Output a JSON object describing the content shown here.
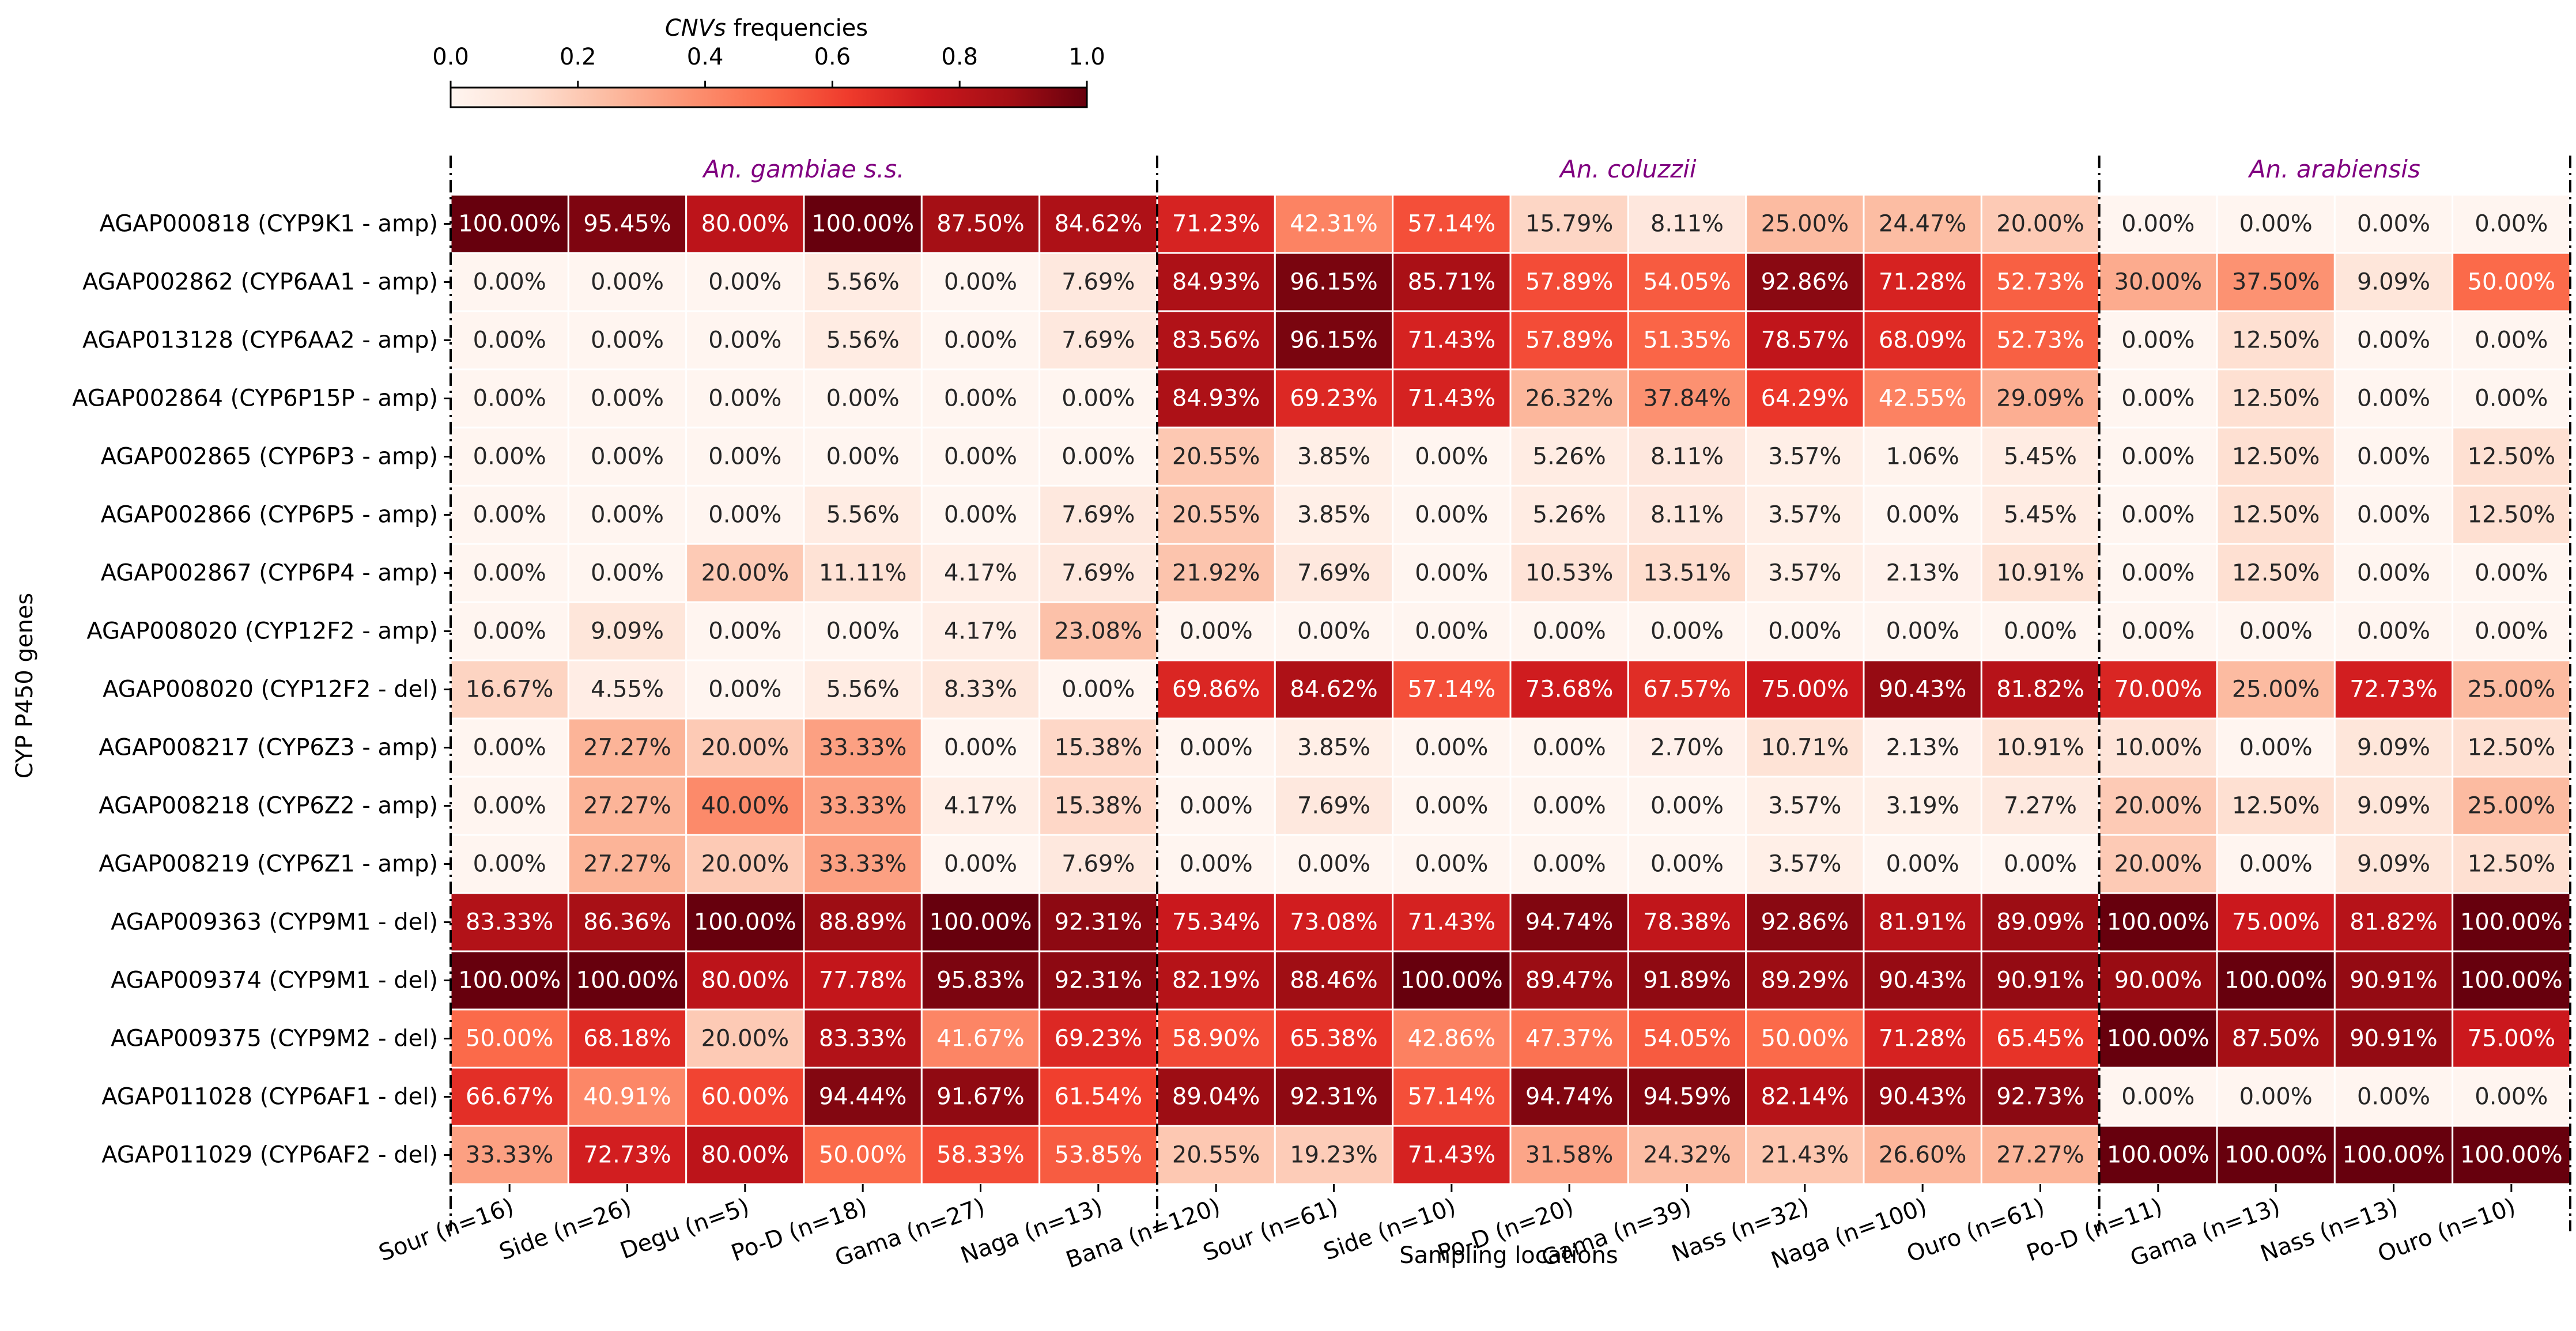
{
  "chart_data": {
    "type": "heatmap",
    "title": "",
    "xlabel": "Sampling locations",
    "ylabel": "CYP P450 genes",
    "colorbar": {
      "label_italic": "CNVs",
      "label_rest": " frequencies",
      "range": [
        0.0,
        1.0
      ],
      "ticks": [
        "0.0",
        "0.2",
        "0.4",
        "0.6",
        "0.8",
        "1.0"
      ],
      "colormap": "Reds",
      "placement": "top-left"
    },
    "groups": [
      {
        "name": "An. gambiae s.s.",
        "columns": 6,
        "color": "#800080"
      },
      {
        "name": "An. coluzzii",
        "columns": 8,
        "color": "#800080"
      },
      {
        "name": "An. arabiensis",
        "columns": 4,
        "color": "#800080"
      }
    ],
    "columns": [
      "Sour (n=16)",
      "Side (n=26)",
      "Degu (n=5)",
      "Po-D (n=18)",
      "Gama (n=27)",
      "Naga (n=13)",
      "Bana (n=120)",
      "Sour (n=61)",
      "Side (n=10)",
      "Po-D (n=20)",
      "Gama (n=39)",
      "Nass (n=32)",
      "Naga (n=100)",
      "Ouro (n=61)",
      "Po-D (n=11)",
      "Gama (n=13)",
      "Nass (n=13)",
      "Ouro (n=10)"
    ],
    "rows": [
      "AGAP000818 (CYP9K1 - amp)",
      "AGAP002862 (CYP6AA1 - amp)",
      "AGAP013128 (CYP6AA2 - amp)",
      "AGAP002864 (CYP6P15P - amp)",
      "AGAP002865 (CYP6P3 - amp)",
      "AGAP002866 (CYP6P5 - amp)",
      "AGAP002867 (CYP6P4 - amp)",
      "AGAP008020 (CYP12F2 - amp)",
      "AGAP008020 (CYP12F2 - del)",
      "AGAP008217 (CYP6Z3 - amp)",
      "AGAP008218 (CYP6Z2 - amp)",
      "AGAP008219 (CYP6Z1 - amp)",
      "AGAP009363 (CYP9M1 - del)",
      "AGAP009374 (CYP9M1 - del)",
      "AGAP009375 (CYP9M2 - del)",
      "AGAP011028 (CYP6AF1 - del)",
      "AGAP011029 (CYP6AF2 - del)"
    ],
    "values": [
      [
        100.0,
        95.45,
        80.0,
        100.0,
        87.5,
        84.62,
        71.23,
        42.31,
        57.14,
        15.79,
        8.11,
        25.0,
        24.47,
        20.0,
        0.0,
        0.0,
        0.0,
        0.0
      ],
      [
        0.0,
        0.0,
        0.0,
        5.56,
        0.0,
        7.69,
        84.93,
        96.15,
        85.71,
        57.89,
        54.05,
        92.86,
        71.28,
        52.73,
        30.0,
        37.5,
        9.09,
        50.0
      ],
      [
        0.0,
        0.0,
        0.0,
        5.56,
        0.0,
        7.69,
        83.56,
        96.15,
        71.43,
        57.89,
        51.35,
        78.57,
        68.09,
        52.73,
        0.0,
        12.5,
        0.0,
        0.0
      ],
      [
        0.0,
        0.0,
        0.0,
        0.0,
        0.0,
        0.0,
        84.93,
        69.23,
        71.43,
        26.32,
        37.84,
        64.29,
        42.55,
        29.09,
        0.0,
        12.5,
        0.0,
        0.0
      ],
      [
        0.0,
        0.0,
        0.0,
        0.0,
        0.0,
        0.0,
        20.55,
        3.85,
        0.0,
        5.26,
        8.11,
        3.57,
        1.06,
        5.45,
        0.0,
        12.5,
        0.0,
        12.5
      ],
      [
        0.0,
        0.0,
        0.0,
        5.56,
        0.0,
        7.69,
        20.55,
        3.85,
        0.0,
        5.26,
        8.11,
        3.57,
        0.0,
        5.45,
        0.0,
        12.5,
        0.0,
        12.5
      ],
      [
        0.0,
        0.0,
        20.0,
        11.11,
        4.17,
        7.69,
        21.92,
        7.69,
        0.0,
        10.53,
        13.51,
        3.57,
        2.13,
        10.91,
        0.0,
        12.5,
        0.0,
        0.0
      ],
      [
        0.0,
        9.09,
        0.0,
        0.0,
        4.17,
        23.08,
        0.0,
        0.0,
        0.0,
        0.0,
        0.0,
        0.0,
        0.0,
        0.0,
        0.0,
        0.0,
        0.0,
        0.0
      ],
      [
        16.67,
        4.55,
        0.0,
        5.56,
        8.33,
        0.0,
        69.86,
        84.62,
        57.14,
        73.68,
        67.57,
        75.0,
        90.43,
        81.82,
        70.0,
        25.0,
        72.73,
        25.0
      ],
      [
        0.0,
        27.27,
        20.0,
        33.33,
        0.0,
        15.38,
        0.0,
        3.85,
        0.0,
        0.0,
        2.7,
        10.71,
        2.13,
        10.91,
        10.0,
        0.0,
        9.09,
        12.5
      ],
      [
        0.0,
        27.27,
        40.0,
        33.33,
        4.17,
        15.38,
        0.0,
        7.69,
        0.0,
        0.0,
        0.0,
        3.57,
        3.19,
        7.27,
        20.0,
        12.5,
        9.09,
        25.0
      ],
      [
        0.0,
        27.27,
        20.0,
        33.33,
        0.0,
        7.69,
        0.0,
        0.0,
        0.0,
        0.0,
        0.0,
        3.57,
        0.0,
        0.0,
        20.0,
        0.0,
        9.09,
        12.5
      ],
      [
        83.33,
        86.36,
        100.0,
        88.89,
        100.0,
        92.31,
        75.34,
        73.08,
        71.43,
        94.74,
        78.38,
        92.86,
        81.91,
        89.09,
        100.0,
        75.0,
        81.82,
        100.0
      ],
      [
        100.0,
        100.0,
        80.0,
        77.78,
        95.83,
        92.31,
        82.19,
        88.46,
        100.0,
        89.47,
        91.89,
        89.29,
        90.43,
        90.91,
        90.0,
        100.0,
        90.91,
        100.0
      ],
      [
        50.0,
        68.18,
        20.0,
        83.33,
        41.67,
        69.23,
        58.9,
        65.38,
        42.86,
        47.37,
        54.05,
        50.0,
        71.28,
        65.45,
        100.0,
        87.5,
        90.91,
        75.0
      ],
      [
        66.67,
        40.91,
        60.0,
        94.44,
        91.67,
        61.54,
        89.04,
        92.31,
        57.14,
        94.74,
        94.59,
        82.14,
        90.43,
        92.73,
        0.0,
        0.0,
        0.0,
        0.0
      ],
      [
        33.33,
        72.73,
        80.0,
        50.0,
        58.33,
        53.85,
        20.55,
        19.23,
        71.43,
        31.58,
        24.32,
        21.43,
        26.6,
        27.27,
        100.0,
        100.0,
        100.0,
        100.0
      ]
    ],
    "value_format": "percent, 2 decimals",
    "separators": "dash-dot vertical lines between species groups"
  }
}
